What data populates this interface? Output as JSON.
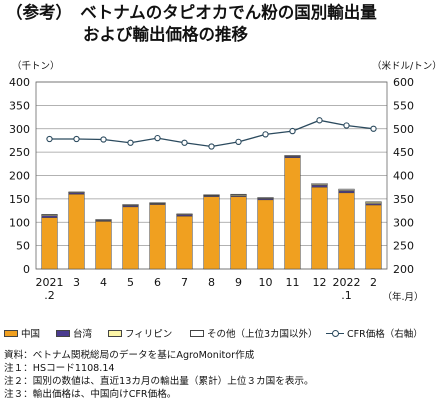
{
  "title": {
    "line1": "（参考）　ベトナムのタピオカでん粉の国別輸出量",
    "line2": "および輸出価格の推移"
  },
  "units": {
    "left": "（千トン）",
    "right": "（米ドル/トン）"
  },
  "legend": {
    "china": "中国",
    "taiwan": "台湾",
    "philippines": "フィリピン",
    "other": "その他（上位3カ国以外）",
    "price": "CFR価格（右軸）"
  },
  "notes": [
    "資料：ベトナム関税総局のデータを基にAgroMonitor作成",
    "注１：HSコード1108.14",
    "注２：国別の数値は、直近13カ月の輸出量（累計）上位３カ国を表示。",
    "注３：輸出価格は、中国向けCFR価格。"
  ],
  "colors": {
    "china": "#f0a020",
    "taiwan": "#4a3b8f",
    "philippines": "#fdf6a8",
    "other": "#ffffff",
    "price_line": "#2b4a5e",
    "grid": "#999999"
  },
  "chart_data": {
    "type": "bar",
    "stacked": true,
    "x_unit_label": "（年.月）",
    "categories": [
      "2021\n.2",
      "3",
      "4",
      "5",
      "6",
      "7",
      "8",
      "9",
      "10",
      "11",
      "12",
      "2022\n.1",
      "2"
    ],
    "series": [
      {
        "name": "中国",
        "axis": "left",
        "values": [
          110,
          160,
          102,
          133,
          138,
          113,
          155,
          155,
          148,
          238,
          175,
          163,
          137
        ]
      },
      {
        "name": "台湾",
        "axis": "left",
        "values": [
          4,
          3,
          2,
          3,
          2,
          3,
          2,
          2,
          3,
          3,
          4,
          4,
          3
        ]
      },
      {
        "name": "フィリピン",
        "axis": "left",
        "values": [
          2,
          1,
          1,
          1,
          1,
          1,
          1,
          2,
          1,
          1,
          2,
          2,
          3
        ]
      },
      {
        "name": "その他（上位3カ国以外）",
        "axis": "left",
        "values": [
          1,
          1,
          1,
          1,
          1,
          1,
          1,
          1,
          1,
          1,
          2,
          2,
          1
        ]
      }
    ],
    "line_series": [
      {
        "name": "CFR価格（右軸）",
        "axis": "right",
        "values": [
          478,
          478,
          477,
          470,
          480,
          470,
          462,
          472,
          488,
          495,
          518,
          507,
          500
        ]
      }
    ],
    "ylim_left": [
      0,
      400
    ],
    "ylim_right": [
      200,
      600
    ],
    "yticks_left": [
      0,
      50,
      100,
      150,
      200,
      250,
      300,
      350,
      400
    ],
    "yticks_right": [
      200,
      250,
      300,
      350,
      400,
      450,
      500,
      550,
      600
    ],
    "grid": true
  }
}
